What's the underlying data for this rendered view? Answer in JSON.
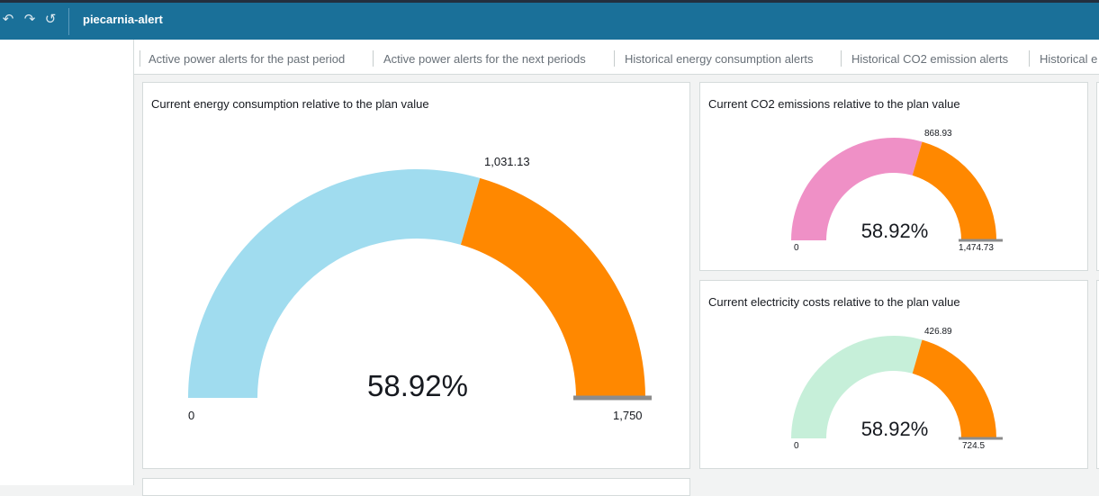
{
  "toolbar": {
    "undo_glyph": "↶",
    "redo_glyph": "↷",
    "reset_glyph": "↺",
    "title": "piecarnia-alert"
  },
  "tabs": [
    {
      "label": "Active power alerts for the past period"
    },
    {
      "label": "Active power alerts for the next periods"
    },
    {
      "label": "Historical energy consumption alerts"
    },
    {
      "label": "Historical CO2 emission alerts"
    },
    {
      "label": "Historical e"
    }
  ],
  "colors": {
    "topbar": "#1a7099",
    "remaining": "#ff8800",
    "energy_fill": "#a0dcef",
    "co2_fill": "#ef90c6",
    "cost_fill": "#c6efd9",
    "marker": "#8c8c8c"
  },
  "gauges": {
    "energy": {
      "title": "Current energy consumption relative to the plan value",
      "percent_label": "58.92%",
      "value_label": "1,031.13",
      "min_label": "0",
      "max_label": "1,750",
      "fraction": 0.5892
    },
    "co2": {
      "title": "Current CO2 emissions relative to the plan value",
      "percent_label": "58.92%",
      "value_label": "868.93",
      "min_label": "0",
      "max_label": "1,474.73",
      "fraction": 0.5892
    },
    "cost": {
      "title": "Current electricity costs relative to the plan value",
      "percent_label": "58.92%",
      "value_label": "426.89",
      "min_label": "0",
      "max_label": "724.5",
      "fraction": 0.5892
    }
  }
}
